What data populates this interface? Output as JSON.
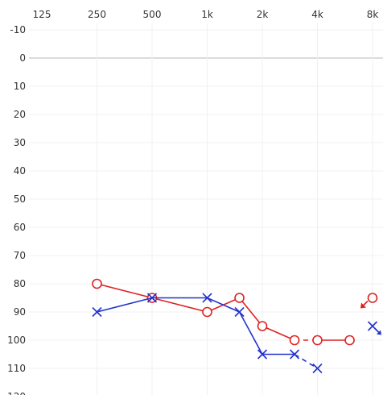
{
  "chart_data": {
    "type": "line",
    "x_ticks": [
      "125",
      "250",
      "500",
      "1k",
      "2k",
      "4k",
      "8k"
    ],
    "y_ticks": [
      "-10",
      "0",
      "10",
      "20",
      "30",
      "40",
      "50",
      "60",
      "70",
      "80",
      "90",
      "100",
      "110",
      "120"
    ],
    "x_scale": "log2",
    "ylim": [
      -10,
      120
    ],
    "y_inverted": true,
    "grid": true,
    "zero_line": true,
    "series": [
      {
        "color": "#dd2222",
        "marker": "circle",
        "points": [
          {
            "x": 250,
            "y": 80
          },
          {
            "x": 500,
            "y": 85
          },
          {
            "x": 1000,
            "y": 90
          },
          {
            "x": 1500,
            "y": 85
          },
          {
            "x": 2000,
            "y": 95
          },
          {
            "x": 3000,
            "y": 100
          },
          {
            "x": 4000,
            "y": 100
          },
          {
            "x": 6000,
            "y": 100
          },
          {
            "x": 8000,
            "y": 85,
            "no_response": true
          }
        ],
        "line_segments": [
          [
            250,
            500,
            "solid"
          ],
          [
            500,
            1000,
            "solid"
          ],
          [
            1000,
            1500,
            "solid"
          ],
          [
            1500,
            2000,
            "solid"
          ],
          [
            2000,
            3000,
            "solid"
          ],
          [
            3000,
            4000,
            "dashed"
          ],
          [
            4000,
            6000,
            "solid"
          ]
        ]
      },
      {
        "color": "#2233cc",
        "marker": "cross",
        "points": [
          {
            "x": 250,
            "y": 90
          },
          {
            "x": 500,
            "y": 85
          },
          {
            "x": 1000,
            "y": 85
          },
          {
            "x": 1500,
            "y": 90
          },
          {
            "x": 2000,
            "y": 105
          },
          {
            "x": 3000,
            "y": 105
          },
          {
            "x": 4000,
            "y": 110
          },
          {
            "x": 8000,
            "y": 95,
            "no_response": true
          }
        ],
        "line_segments": [
          [
            250,
            500,
            "solid"
          ],
          [
            500,
            1000,
            "solid"
          ],
          [
            1000,
            1500,
            "solid"
          ],
          [
            1500,
            2000,
            "solid"
          ],
          [
            2000,
            3000,
            "solid"
          ],
          [
            3000,
            4000,
            "dashed"
          ]
        ]
      }
    ]
  }
}
